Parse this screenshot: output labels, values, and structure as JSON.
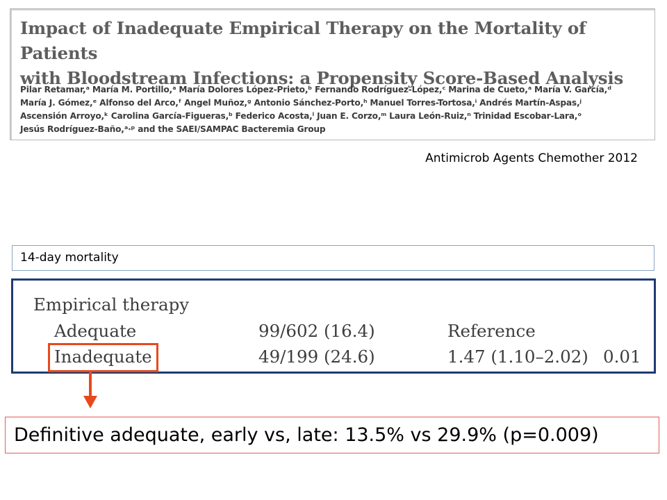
{
  "paper": {
    "title_line1": "Impact of Inadequate Empirical Therapy on the Mortality of Patients",
    "title_line2": "with Bloodstream Infections: a Propensity Score-Based Analysis",
    "authors": [
      "Pilar Retamar,ᵃ María M. Portillo,ᵃ María Dolores López-Prieto,ᵇ Fernando Rodríguez-López,ᶜ Marina de Cueto,ᵃ María V. García,ᵈ",
      "María J. Gómez,ᵉ Alfonso del Arco,ᶠ Angel Muñoz,ᵍ Antonio Sánchez-Porto,ʰ Manuel Torres-Tortosa,ⁱ Andrés Martín-Aspas,ʲ",
      "Ascensión Arroyo,ᵏ Carolina García-Figueras,ᵇ Federico Acosta,ˡ Juan E. Corzo,ᵐ Laura León-Ruiz,ⁿ Trinidad Escobar-Lara,ᵒ",
      "Jesús Rodríguez-Baño,ᵃ·ᵖ and the SAEI/SAMPAC Bacteremia Group"
    ]
  },
  "citation": "Antimicrob Agents Chemother 2012",
  "section_label": "14-day mortality",
  "table": {
    "heading": "Empirical therapy",
    "rows": [
      {
        "label": "Adequate",
        "count": "99/602 (16.4)",
        "estimate": "Reference",
        "p": ""
      },
      {
        "label": "Inadequate",
        "count": "49/199 (24.6)",
        "estimate": "1.47 (1.10–2.02)",
        "p": "0.01"
      }
    ]
  },
  "result": "Definitive adequate, early vs, late: 13.5% vs 29.9% (p=0.009)",
  "colors": {
    "highlight": "#e8491b",
    "table_border": "#1f3a73",
    "label_border": "#8aa3c4",
    "result_border": "#e65a5a"
  }
}
